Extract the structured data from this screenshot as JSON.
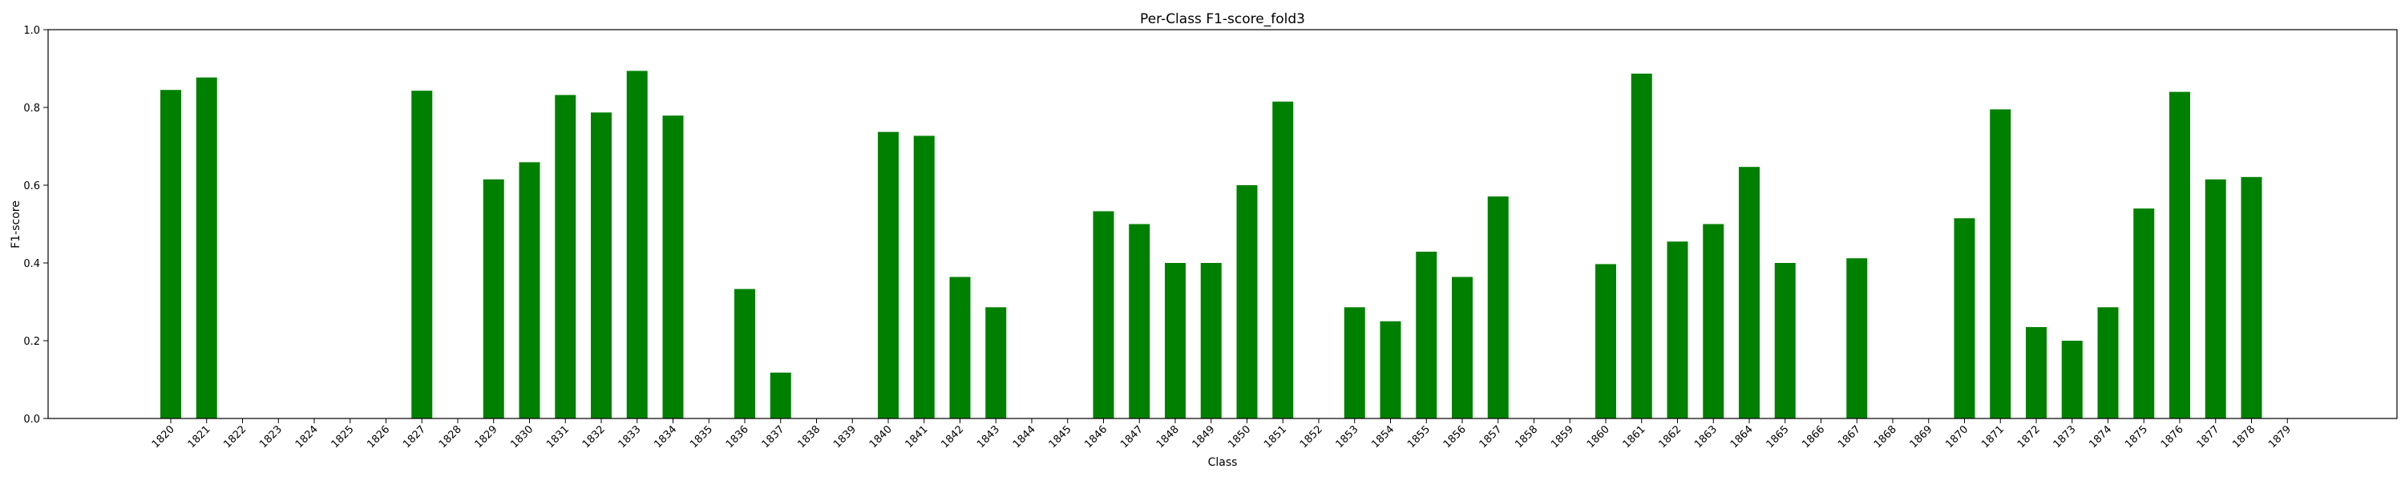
{
  "chart_data": {
    "type": "bar",
    "title": "Per-Class F1-score_fold3",
    "xlabel": "Class",
    "ylabel": "F1-score",
    "ylim": [
      0.0,
      1.0
    ],
    "yticks": [
      "0.0",
      "0.2",
      "0.4",
      "0.6",
      "0.8",
      "1.0"
    ],
    "grid": false,
    "bar_color": "#008000",
    "categories": [
      "1820",
      "1821",
      "1822",
      "1823",
      "1824",
      "1825",
      "1826",
      "1827",
      "1828",
      "1829",
      "1830",
      "1831",
      "1832",
      "1833",
      "1834",
      "1835",
      "1836",
      "1837",
      "1838",
      "1839",
      "1840",
      "1841",
      "1842",
      "1843",
      "1844",
      "1845",
      "1846",
      "1847",
      "1848",
      "1849",
      "1850",
      "1851",
      "1852",
      "1853",
      "1854",
      "1855",
      "1856",
      "1857",
      "1858",
      "1859",
      "1860",
      "1861",
      "1862",
      "1863",
      "1864",
      "1865",
      "1866",
      "1867",
      "1868",
      "1869",
      "1870",
      "1871",
      "1872",
      "1873",
      "1874",
      "1875",
      "1876",
      "1877",
      "1878",
      "1879"
    ],
    "values": [
      0.845,
      0.877,
      0,
      0,
      0,
      0,
      0,
      0.843,
      0,
      0.615,
      0.659,
      0.832,
      0.787,
      0.894,
      0.779,
      0,
      0.333,
      0.118,
      0,
      0,
      0.737,
      0.727,
      0.364,
      0.286,
      0,
      0,
      0.533,
      0.5,
      0.4,
      0.4,
      0.6,
      0.815,
      0,
      0.286,
      0.25,
      0.429,
      0.364,
      0.571,
      0,
      0,
      0.397,
      0.887,
      0.455,
      0.5,
      0.647,
      0.4,
      0,
      0.412,
      0,
      0,
      0.515,
      0.795,
      0.235,
      0.2,
      0.286,
      0.54,
      0.84,
      0.615,
      0.621,
      0
    ]
  }
}
